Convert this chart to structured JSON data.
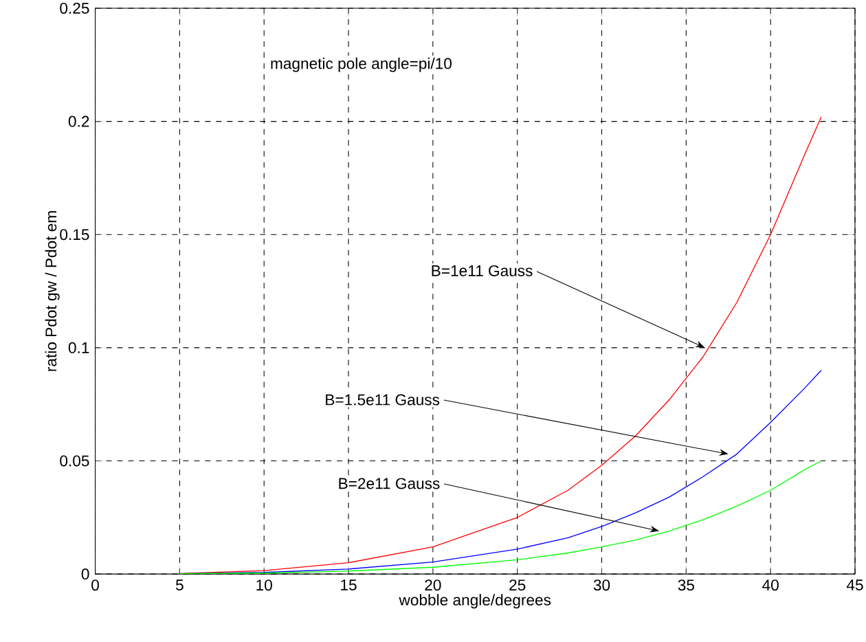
{
  "chart_data": {
    "type": "line",
    "xlabel": "wobble angle/degrees",
    "ylabel": "ratio Pdot gw / Pdot em",
    "x": [
      5,
      10,
      15,
      20,
      25,
      28,
      30,
      32,
      34,
      36,
      38,
      40,
      42,
      43
    ],
    "series": [
      {
        "color": "#ff0000",
        "values": [
          0.0002,
          0.0015,
          0.005,
          0.012,
          0.025,
          0.037,
          0.048,
          0.061,
          0.077,
          0.096,
          0.12,
          0.15,
          0.185,
          0.202
        ]
      },
      {
        "color": "#0000ff",
        "values": [
          0.0001,
          0.0007,
          0.0022,
          0.0053,
          0.011,
          0.016,
          0.021,
          0.027,
          0.034,
          0.043,
          0.053,
          0.067,
          0.082,
          0.09
        ]
      },
      {
        "color": "#00ff00",
        "values": [
          0.0001,
          0.0004,
          0.0013,
          0.003,
          0.0063,
          0.0093,
          0.012,
          0.015,
          0.019,
          0.024,
          0.03,
          0.037,
          0.046,
          0.05
        ]
      }
    ],
    "annotations": [
      "magnetic pole angle=pi/10",
      {
        "text": "B=1e11 Gauss",
        "x": 36.1,
        "y": 0.1
      },
      {
        "text": "B=1.5e11 Gauss",
        "x": 37.5,
        "y": 0.053
      },
      {
        "text": "B=2e11 Gauss",
        "x": 33.4,
        "y": 0.019
      }
    ],
    "xlim": [
      0,
      45
    ],
    "ylim": [
      0,
      0.25
    ],
    "xticks": [
      0,
      5,
      10,
      15,
      20,
      25,
      30,
      35,
      40,
      45
    ],
    "yticks": [
      0,
      0.05,
      0.1,
      0.15,
      0.2,
      0.25
    ],
    "grid": true,
    "marker": "none",
    "line_style": "solid"
  }
}
